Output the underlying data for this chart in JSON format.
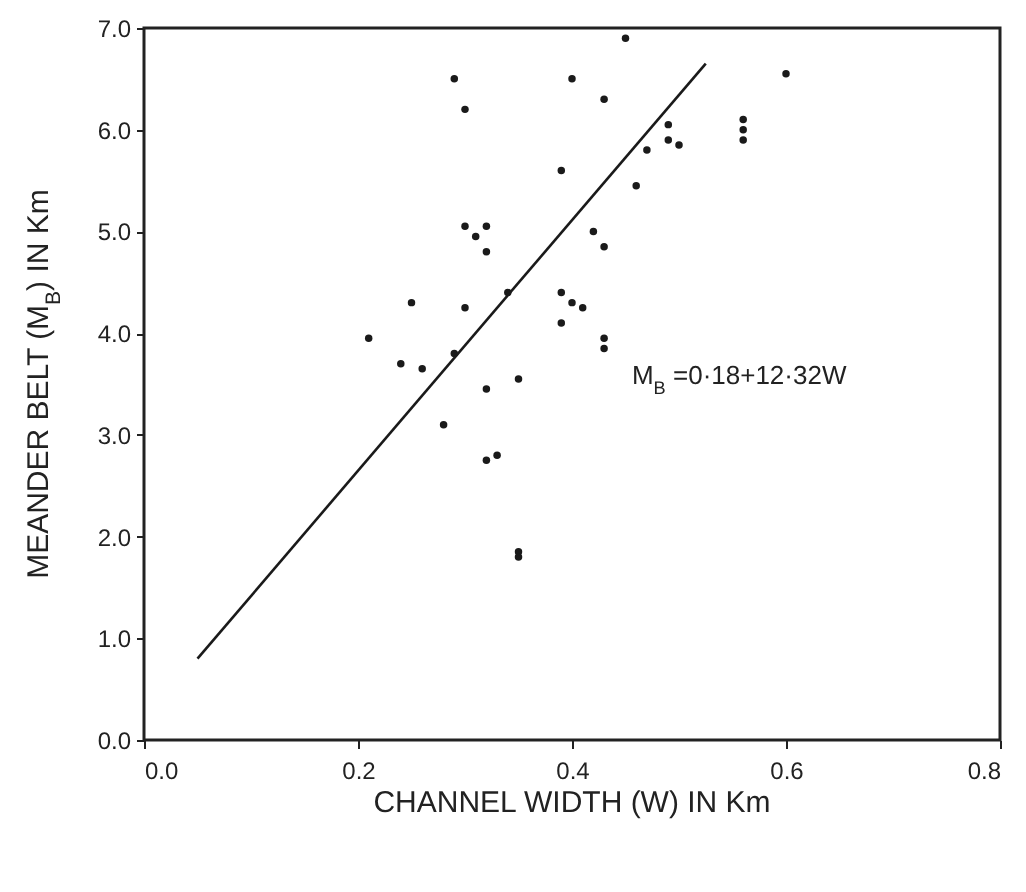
{
  "chart_data": {
    "type": "scatter",
    "xlabel": "CHANNEL WIDTH (W) IN Km",
    "ylabel": "MEANDER BELT (M$_{B}$) IN Km",
    "annotations": [
      "M$_{B}$ =0·18+12·32W"
    ],
    "xlim": [
      0,
      0.8
    ],
    "ylim": [
      0,
      7
    ],
    "xticks": [
      {
        "value": 0,
        "label": "0.0"
      },
      {
        "value": 0.2,
        "label": "0.2"
      },
      {
        "value": 0.4,
        "label": "0.4"
      },
      {
        "value": 0.6,
        "label": "0.6"
      },
      {
        "value": 0.8,
        "label": "0.8"
      }
    ],
    "yticks": [
      {
        "value": 0,
        "label": "0.0"
      },
      {
        "value": 1,
        "label": "1.0"
      },
      {
        "value": 2,
        "label": "2.0"
      },
      {
        "value": 3,
        "label": "3.0"
      },
      {
        "value": 4,
        "label": "4.0"
      },
      {
        "value": 5,
        "label": "5.0"
      },
      {
        "value": 6,
        "label": "6.0"
      },
      {
        "value": 7,
        "label": "7.0"
      }
    ],
    "series": [
      {
        "marker": "circle",
        "color": "#1a1a1a",
        "x": [
          0.29,
          0.3,
          0.4,
          0.43,
          0.45,
          0.49,
          0.49,
          0.5,
          0.47,
          0.46,
          0.39,
          0.3,
          0.31,
          0.32,
          0.32,
          0.42,
          0.43,
          0.25,
          0.3,
          0.34,
          0.39,
          0.4,
          0.41,
          0.39,
          0.21,
          0.24,
          0.26,
          0.29,
          0.43,
          0.43,
          0.32,
          0.35,
          0.28,
          0.32,
          0.33,
          0.35,
          0.35,
          0.6,
          0.56,
          0.56,
          0.56
        ],
        "values": [
          6.5,
          6.2,
          6.5,
          6.3,
          6.9,
          6.05,
          5.9,
          5.85,
          5.8,
          5.45,
          5.6,
          5.05,
          4.95,
          5.05,
          4.8,
          5.0,
          4.85,
          4.3,
          4.25,
          4.4,
          4.4,
          4.3,
          4.25,
          4.1,
          3.95,
          3.7,
          3.65,
          3.8,
          3.95,
          3.85,
          3.45,
          3.55,
          3.1,
          2.75,
          2.8,
          1.85,
          1.8,
          6.55,
          6.1,
          6.0,
          5.9
        ]
      },
      {
        "type": "line",
        "color": "#1a1a1a",
        "x": [
          0.05,
          0.525
        ],
        "values": [
          0.8,
          6.65
        ]
      }
    ]
  }
}
